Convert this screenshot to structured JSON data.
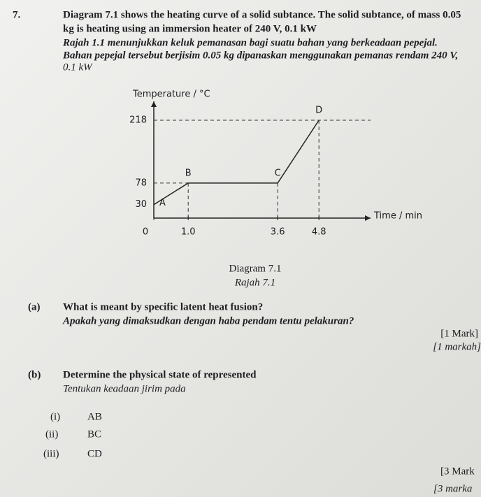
{
  "question": {
    "number": "7.",
    "lines": [
      "Diagram 7.1 shows the heating curve of a solid subtance. The solid subtance, of mass 0.05",
      "kg is heating using an immersion heater of 240 V, 0.1 kW",
      "Rajah 1.1 menunjukkan keluk pemanasan bagi suatu bahan yang berkeadaan pepejal.",
      "Bahan pepejal tersebut berjisim 0.05 kg dipanaskan menggunakan pemanas rendam 240 V,",
      "0.1 kW"
    ]
  },
  "diagram": {
    "type": "line",
    "y_label": "Temperature / °C",
    "x_label": "Time / min",
    "xlim": [
      0,
      6.3
    ],
    "ylim": [
      0,
      260
    ],
    "xticks": [
      0,
      {
        "value": 1,
        "label": "1.0"
      },
      3.6,
      4.8
    ],
    "yticks": [
      30,
      78,
      218
    ],
    "points": [
      {
        "label": "A",
        "x": 0,
        "y": 30
      },
      {
        "label": "B",
        "x": 1,
        "y": 78
      },
      {
        "label": "C",
        "x": 3.6,
        "y": 78
      },
      {
        "label": "D",
        "x": 4.8,
        "y": 218
      }
    ],
    "caption": "Diagram 7.1",
    "caption_ms": "Rajah 7.1"
  },
  "part_a": {
    "label": "(a)",
    "question": "What is meant by specific latent heat fusion?",
    "question_ms": "Apakah yang dimaksudkan dengan haba pendam tentu pelakuran?",
    "marks": "[1 Mark]",
    "marks_ms": "[1 markah]"
  },
  "part_b": {
    "label": "(b)",
    "question": "Determine the physical state of represented",
    "question_ms": "Tentukan keadaan jirim pada",
    "items": [
      {
        "label": "(i)",
        "text": "AB"
      },
      {
        "label": "(ii)",
        "text": "BC"
      },
      {
        "label": "(iii)",
        "text": "CD"
      }
    ],
    "marks": "[3 Mark",
    "marks_ms": "[3 marka"
  }
}
